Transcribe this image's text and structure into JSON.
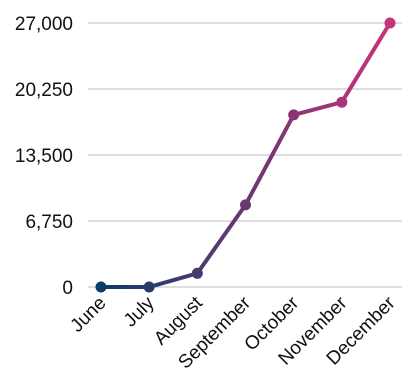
{
  "chart_data": {
    "type": "line",
    "title": "",
    "xlabel": "",
    "ylabel": "",
    "categories": [
      "June",
      "July",
      "August",
      "September",
      "October",
      "November",
      "December"
    ],
    "series": [
      {
        "values": [
          0,
          0,
          1400,
          8400,
          17600,
          18900,
          27000
        ]
      }
    ],
    "ylim": [
      0,
      27000
    ],
    "yticks": [
      "0",
      "6,750",
      "13,500",
      "20,250",
      "27,000"
    ],
    "ytick_values": [
      0,
      6750,
      13500,
      20250,
      27000
    ],
    "grid": "horizontal",
    "legend": "none",
    "colors": {
      "start": "#0b3d66",
      "end": "#c8327a",
      "grid": "#bdbdbd"
    }
  }
}
